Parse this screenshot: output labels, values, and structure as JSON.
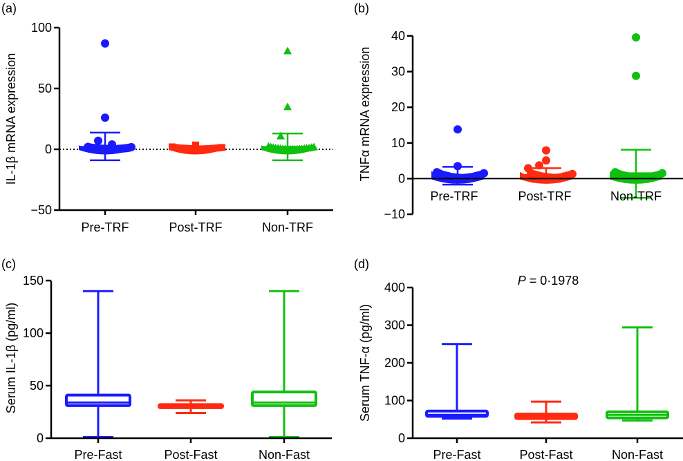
{
  "colors": {
    "blue": "#1a1aff",
    "red": "#ff2a10",
    "green": "#10c010",
    "axis": "#000000"
  },
  "chart_data": [
    {
      "panel_label": "(a)",
      "type": "scatter",
      "ylabel": "IL-1β mRNA expression",
      "ylim": [
        -50,
        100
      ],
      "yticks": [
        -50,
        0,
        50,
        100
      ],
      "ytick_labels": [
        "−50",
        "0",
        "50",
        "100"
      ],
      "reference_line": {
        "y": 0,
        "style": "dotted"
      },
      "categories": [
        "Pre-TRF",
        "Post-TRF",
        "Non-TRF"
      ],
      "series": [
        {
          "name": "Pre-TRF",
          "color": "blue",
          "marker": "circle",
          "mean": 2,
          "err_upper": 13.7,
          "err_lower": -9,
          "points": [
            87,
            26,
            7,
            4,
            2,
            1.5,
            1.2,
            1,
            0.8,
            0.6,
            0.5,
            0.4,
            0.3,
            0.3,
            0.2,
            0.2,
            0.2,
            0.3,
            0.4,
            0.6,
            0.8,
            1,
            1.3,
            1.8
          ]
        },
        {
          "name": "Post-TRF",
          "color": "red",
          "marker": "square",
          "mean": 1,
          "err_upper": 2,
          "err_lower": 0,
          "points": [
            3.5,
            2,
            1.5,
            1.2,
            1,
            0.9,
            0.8,
            0.6,
            0.5,
            0.4,
            0.3,
            0.3,
            0.3,
            0.4,
            0.5,
            0.6,
            0.8,
            1,
            1.2,
            1.5
          ]
        },
        {
          "name": "Non-TRF",
          "color": "green",
          "marker": "triangle",
          "mean": 2,
          "err_upper": 13,
          "err_lower": -9,
          "points": [
            81,
            35,
            11,
            2.5,
            2,
            1.5,
            1.2,
            1,
            0.8,
            0.6,
            0.5,
            0.4,
            0.3,
            0.3,
            0.2,
            0.3,
            0.4,
            0.6,
            0.8,
            1,
            1.2,
            1.6,
            2
          ]
        }
      ]
    },
    {
      "panel_label": "(b)",
      "type": "scatter",
      "ylabel": "TNFα mRNA expression",
      "ylim": [
        -10,
        40
      ],
      "yticks": [
        -10,
        0,
        10,
        20,
        30,
        40
      ],
      "ytick_labels": [
        "−10",
        "0",
        "10",
        "20",
        "30",
        "40"
      ],
      "reference_line": {
        "y": 0,
        "style": "solid"
      },
      "categories": [
        "Pre-TRF",
        "Post-TRF",
        "Non-TRF"
      ],
      "series": [
        {
          "name": "Pre-TRF",
          "color": "blue",
          "marker": "circle",
          "mean": 1,
          "err_upper": 3.3,
          "err_lower": -1.7,
          "points": [
            13.8,
            3.5,
            1.8,
            1.4,
            1.1,
            0.9,
            0.7,
            0.5,
            0.4,
            0.3,
            0.2,
            0.2,
            0.2,
            0.3,
            0.4,
            0.5,
            0.7,
            0.9,
            1.1,
            1.5
          ]
        },
        {
          "name": "Post-TRF",
          "color": "red",
          "marker": "circle",
          "mean": 1,
          "err_upper": 2.9,
          "err_lower": -0.9,
          "points": [
            7.9,
            5.1,
            3.7,
            2.9,
            1.5,
            1.2,
            1,
            0.8,
            0.6,
            0.5,
            0.4,
            0.3,
            0.2,
            0.2,
            0.3,
            0.4,
            0.6,
            0.8,
            1,
            1.3
          ]
        },
        {
          "name": "Non-TRF",
          "color": "green",
          "marker": "circle",
          "mean": 1.5,
          "err_upper": 8.1,
          "err_lower": -5.4,
          "points": [
            39.6,
            28.8,
            1.8,
            1.4,
            1.1,
            0.9,
            0.7,
            0.5,
            0.4,
            0.3,
            0.2,
            0.2,
            0.2,
            0.3,
            0.4,
            0.5,
            0.7,
            0.9,
            1.1,
            1.5
          ]
        }
      ]
    },
    {
      "panel_label": "(c)",
      "type": "box",
      "ylabel": "Serum IL-1β (pg/ml)",
      "ylim": [
        0,
        150
      ],
      "yticks": [
        0,
        50,
        100,
        150
      ],
      "ytick_labels": [
        "0",
        "50",
        "100",
        "150"
      ],
      "categories": [
        "Pre-Fast",
        "Post-Fast",
        "Non-Fast"
      ],
      "series": [
        {
          "name": "Pre-Fast",
          "color": "blue",
          "min": 1,
          "q1": 31,
          "median": 34,
          "q3": 41,
          "max": 140
        },
        {
          "name": "Post-Fast",
          "color": "red",
          "min": 24,
          "q1": 29,
          "median": 31,
          "q3": 32,
          "max": 36
        },
        {
          "name": "Non-Fast",
          "color": "green",
          "min": 1,
          "q1": 31,
          "median": 34,
          "q3": 44,
          "max": 140
        }
      ]
    },
    {
      "panel_label": "(d)",
      "type": "box",
      "ylabel": "Serum TNF-α (pg/ml)",
      "annotation": {
        "italic": "P",
        "text": " = 0·1978"
      },
      "ylim": [
        0,
        400
      ],
      "yticks": [
        0,
        100,
        200,
        300,
        400
      ],
      "ytick_labels": [
        "0",
        "100",
        "200",
        "300",
        "400"
      ],
      "categories": [
        "Pre-Fast",
        "Post-Fast",
        "Non-Fast"
      ],
      "series": [
        {
          "name": "Pre-Fast",
          "color": "blue",
          "min": 52,
          "q1": 58,
          "median": 62,
          "q3": 72,
          "max": 250
        },
        {
          "name": "Post-Fast",
          "color": "red",
          "min": 42,
          "q1": 52,
          "median": 58,
          "q3": 64,
          "max": 97
        },
        {
          "name": "Non-Fast",
          "color": "green",
          "min": 47,
          "q1": 54,
          "median": 62,
          "q3": 70,
          "max": 294
        }
      ]
    }
  ]
}
